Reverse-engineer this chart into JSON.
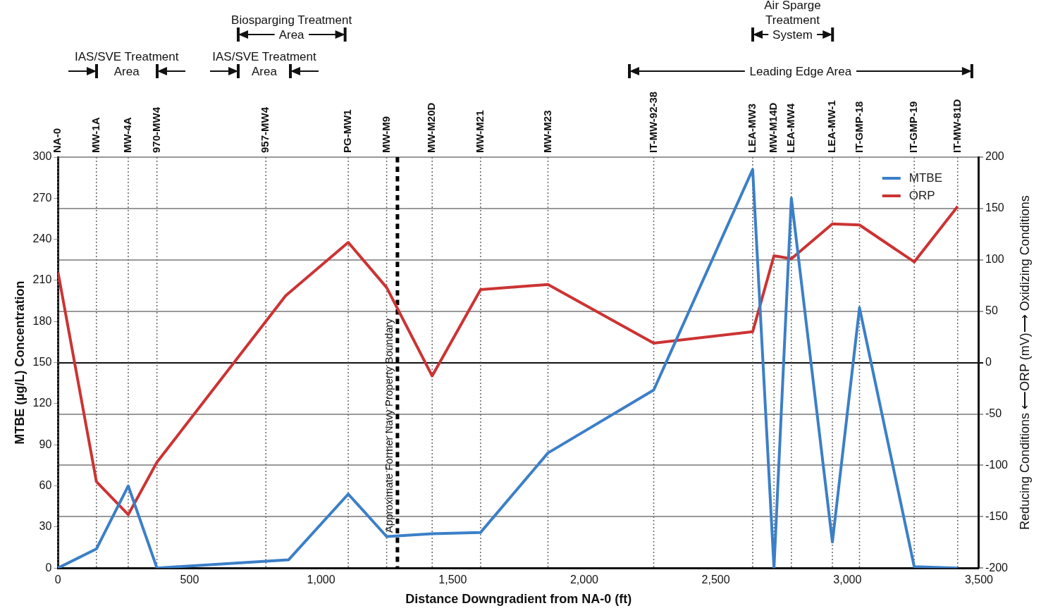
{
  "chart_data": {
    "type": "line",
    "xlabel": "Distance Downgradient from NA-0 (ft)",
    "ylabel": "MTBE (µg/L) Concentration",
    "y2label": "Reducing Conditions ⟵ORP (mV)⟶ Oxidizing Conditions",
    "xlim": [
      0,
      3500
    ],
    "xticks": [
      0,
      500,
      {
        "value": 1000,
        "label": "1,000"
      },
      {
        "value": 1500,
        "label": "1,500"
      },
      {
        "value": 2000,
        "label": "2,000"
      },
      {
        "value": 2500,
        "label": "2,500"
      },
      {
        "value": 3000,
        "label": "3,000"
      },
      {
        "value": 3500,
        "label": "3,500"
      }
    ],
    "ylim": [
      0,
      300
    ],
    "yticks": [
      0,
      30,
      60,
      90,
      120,
      150,
      180,
      210,
      240,
      270,
      300
    ],
    "y2lim": [
      -200,
      200
    ],
    "y2ticks": [
      -200,
      -150,
      -100,
      -50,
      0,
      50,
      100,
      150,
      200
    ],
    "grid": "y2",
    "legend": "top right",
    "marker": "none",
    "line_style": "solid",
    "series": [
      {
        "name": "MTBE",
        "color": "#3b7fc8",
        "axis": "y",
        "x": [
          0,
          146,
          267,
          376,
          876,
          1103,
          1249,
          1422,
          1606,
          1862,
          2264,
          2640,
          2721,
          2787,
          2943,
          3046,
          3254,
          3419
        ],
        "values": [
          0,
          14,
          60,
          0,
          6,
          54,
          23,
          25,
          26,
          84,
          130,
          291,
          0,
          270,
          19,
          190,
          1,
          0
        ]
      },
      {
        "name": "ORP",
        "color": "#cc3333",
        "axis": "y2",
        "x": [
          0,
          146,
          267,
          376,
          865,
          1103,
          1249,
          1422,
          1606,
          1862,
          2264,
          2640,
          2721,
          2787,
          2943,
          3046,
          3254,
          3419
        ],
        "values": [
          88,
          -116,
          -148,
          -97,
          65,
          117,
          73,
          -13,
          71,
          76,
          19,
          30,
          104,
          101,
          135,
          134,
          98,
          152
        ]
      }
    ],
    "ref_lines": [
      {
        "axis": "x",
        "value": 0,
        "label": "NA-0",
        "line_style": "dotted"
      },
      {
        "axis": "x",
        "value": 146,
        "label": "MW-1A",
        "line_style": "dotted"
      },
      {
        "axis": "x",
        "value": 267,
        "label": "MW-4A",
        "line_style": "dotted"
      },
      {
        "axis": "x",
        "value": 376,
        "label": "970-MW4",
        "line_style": "dotted"
      },
      {
        "axis": "x",
        "value": 790,
        "label": "957-MW4",
        "line_style": "dotted"
      },
      {
        "axis": "x",
        "value": 1103,
        "label": "PG-MW1",
        "line_style": "dotted"
      },
      {
        "axis": "x",
        "value": 1249,
        "label": "MW-M9",
        "line_style": "dotted"
      },
      {
        "axis": "x",
        "value": 1422,
        "label": "MW-M20D",
        "line_style": "dotted"
      },
      {
        "axis": "x",
        "value": 1606,
        "label": "MW-M21",
        "line_style": "dotted"
      },
      {
        "axis": "x",
        "value": 1862,
        "label": "MW-M23",
        "line_style": "dotted"
      },
      {
        "axis": "x",
        "value": 2264,
        "label": "IT-MW-92-38",
        "line_style": "dotted"
      },
      {
        "axis": "x",
        "value": 2640,
        "label": "LEA-MW3",
        "line_style": "dotted"
      },
      {
        "axis": "x",
        "value": 2721,
        "label": "MW-M14D",
        "line_style": "dotted"
      },
      {
        "axis": "x",
        "value": 2787,
        "label": "LEA-MW4",
        "line_style": "dotted"
      },
      {
        "axis": "x",
        "value": 2943,
        "label": "LEA-MW-1",
        "line_style": "dotted"
      },
      {
        "axis": "x",
        "value": 3046,
        "label": "IT-GMP-18",
        "line_style": "dotted"
      },
      {
        "axis": "x",
        "value": 3254,
        "label": "IT-GMP-19",
        "line_style": "dotted"
      },
      {
        "axis": "x",
        "value": 3419,
        "label": "IT-MW-81D",
        "line_style": "dotted"
      },
      {
        "axis": "x",
        "value": 1290,
        "label": "Approximate Former Navy Property Boundary",
        "line_style": "dashed",
        "color": "#000000"
      }
    ],
    "annotations": [
      "IAS/SVE Treatment Area",
      "IAS/SVE Treatment Area",
      "Biosparging Treatment Area",
      "Leading Edge Area",
      "Air Sparge Treatment System"
    ]
  }
}
